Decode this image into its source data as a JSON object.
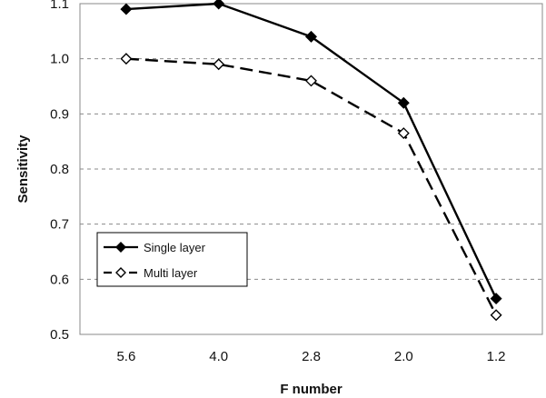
{
  "chart_data": {
    "type": "line",
    "title": "",
    "xlabel": "F number",
    "ylabel": "Sensitivity",
    "categories": [
      "5.6",
      "4.0",
      "2.8",
      "2.0",
      "1.2"
    ],
    "series": [
      {
        "name": "Single layer",
        "values": [
          1.09,
          1.1,
          1.04,
          0.92,
          0.565
        ],
        "line_style": "solid",
        "marker": "filled-diamond",
        "color": "#000000"
      },
      {
        "name": "Multi layer",
        "values": [
          1.0,
          0.99,
          0.96,
          0.865,
          0.535
        ],
        "line_style": "dashed",
        "marker": "open-diamond",
        "color": "#000000"
      }
    ],
    "ylim": [
      0.5,
      1.1
    ],
    "yticks": [
      0.5,
      0.6,
      0.7,
      0.8,
      0.9,
      1.0,
      1.1
    ],
    "ytick_labels": [
      "0.5",
      "0.6",
      "0.7",
      "0.8",
      "0.9",
      "1.0",
      "1.1"
    ],
    "grid": "horizontal-dashed",
    "legend_position": "lower-left"
  }
}
